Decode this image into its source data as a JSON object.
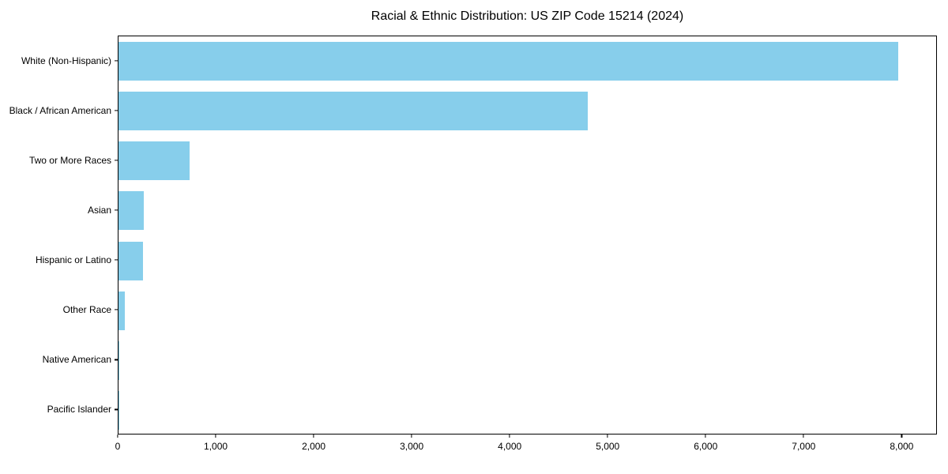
{
  "chart_data": {
    "type": "bar",
    "orientation": "horizontal",
    "title": "Racial & Ethnic Distribution: US ZIP Code 15214 (2024)",
    "categories": [
      "White (Non-Hispanic)",
      "Black / African American",
      "Two or More Races",
      "Asian",
      "Hispanic or Latino",
      "Other Race",
      "Native American",
      "Pacific Islander"
    ],
    "values": [
      7960,
      4790,
      725,
      255,
      248,
      68,
      12,
      2
    ],
    "title_text_color": "#000000",
    "bar_color": "#87CEEB",
    "xlabel": "",
    "ylabel": "",
    "xlim": [
      0,
      8360
    ],
    "x_ticks": [
      0,
      1000,
      2000,
      3000,
      4000,
      5000,
      6000,
      7000,
      8000
    ],
    "x_tick_labels": [
      "0",
      "1,000",
      "2,000",
      "3,000",
      "4,000",
      "5,000",
      "6,000",
      "7,000",
      "8,000"
    ],
    "grid": false,
    "legend_position": "none"
  }
}
